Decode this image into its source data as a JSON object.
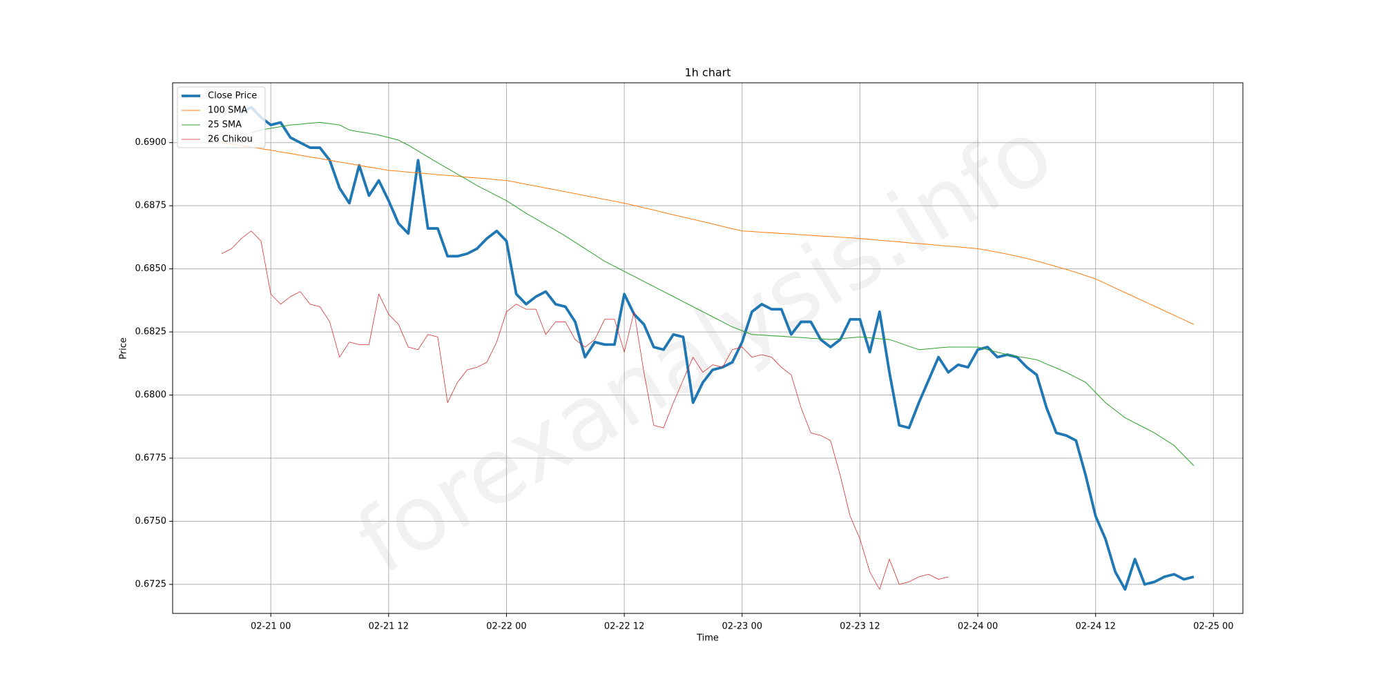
{
  "chart_data": {
    "type": "line",
    "title": "1h chart",
    "xlabel": "Time",
    "ylabel": "Price",
    "watermark": "forexanalysis.info",
    "grid": true,
    "legend": "upper left",
    "xlim": [
      "02-20 14",
      "02-25 03"
    ],
    "xticks": [
      "02-21 00",
      "02-21 12",
      "02-22 00",
      "02-22 12",
      "02-23 00",
      "02-23 12",
      "02-24 00",
      "02-24 12",
      "02-25 00"
    ],
    "ylim": [
      0.67135,
      0.69237
    ],
    "yticks": [
      0.6725,
      {
        "value": 0.675,
        "label": "0.6750"
      },
      0.6775,
      {
        "value": 0.68,
        "label": "0.6800"
      },
      0.6825,
      {
        "value": 0.685,
        "label": "0.6850"
      },
      0.6875,
      {
        "value": 0.69,
        "label": "0.6900"
      }
    ],
    "x": [
      "02-20 19",
      "02-20 20",
      "02-20 21",
      "02-20 22",
      "02-20 23",
      "02-21 00",
      "02-21 01",
      "02-21 02",
      "02-21 03",
      "02-21 04",
      "02-21 05",
      "02-21 06",
      "02-21 07",
      "02-21 08",
      "02-21 09",
      "02-21 10",
      "02-21 11",
      "02-21 12",
      "02-21 13",
      "02-21 14",
      "02-21 15",
      "02-21 16",
      "02-21 17",
      "02-21 18",
      "02-21 19",
      "02-21 20",
      "02-21 21",
      "02-21 22",
      "02-21 23",
      "02-22 00",
      "02-22 01",
      "02-22 02",
      "02-22 03",
      "02-22 04",
      "02-22 05",
      "02-22 06",
      "02-22 07",
      "02-22 08",
      "02-22 09",
      "02-22 10",
      "02-22 11",
      "02-22 12",
      "02-22 13",
      "02-22 14",
      "02-22 15",
      "02-22 16",
      "02-22 17",
      "02-22 18",
      "02-22 19",
      "02-22 20",
      "02-22 21",
      "02-22 22",
      "02-22 23",
      "02-23 00",
      "02-23 01",
      "02-23 02",
      "02-23 03",
      "02-23 04",
      "02-23 05",
      "02-23 06",
      "02-23 07",
      "02-23 08",
      "02-23 09",
      "02-23 10",
      "02-23 11",
      "02-23 12",
      "02-23 13",
      "02-23 14",
      "02-23 15",
      "02-23 16",
      "02-23 17",
      "02-23 18",
      "02-23 19",
      "02-23 20",
      "02-23 21",
      "02-23 22",
      "02-23 23",
      "02-24 00",
      "02-24 01",
      "02-24 02",
      "02-24 03",
      "02-24 04",
      "02-24 05",
      "02-24 06",
      "02-24 07",
      "02-24 08",
      "02-24 09",
      "02-24 10",
      "02-24 11",
      "02-24 12",
      "02-24 13",
      "02-24 14",
      "02-24 15",
      "02-24 16",
      "02-24 17",
      "02-24 18",
      "02-24 19",
      "02-24 20",
      "02-24 21",
      "02-24 22"
    ],
    "series": [
      {
        "name": "Close Price",
        "color": "#1f77b4",
        "width": 3,
        "values": [
          null,
          null,
          0.6912,
          0.6914,
          0.691,
          0.6907,
          0.6908,
          0.6902,
          0.69,
          0.6898,
          0.6898,
          0.6893,
          0.6882,
          0.6876,
          0.6891,
          0.6879,
          0.6885,
          0.6877,
          0.6868,
          0.6864,
          0.6893,
          0.6866,
          0.6866,
          0.6855,
          0.6855,
          0.6856,
          0.6858,
          0.6862,
          0.6865,
          0.6861,
          0.684,
          0.6836,
          0.6839,
          0.6841,
          0.6836,
          0.6835,
          0.6829,
          0.6815,
          0.6821,
          0.682,
          0.682,
          0.684,
          0.6832,
          0.6828,
          0.6819,
          0.6818,
          0.6824,
          0.6823,
          0.6797,
          0.6805,
          0.681,
          0.6811,
          0.6813,
          0.6821,
          0.6833,
          0.6836,
          0.6834,
          0.6834,
          0.6824,
          0.6829,
          0.6829,
          0.6822,
          0.6819,
          0.6822,
          0.683,
          0.683,
          0.6817,
          0.6833,
          0.6809,
          0.6788,
          0.6787,
          0.6797,
          0.6806,
          0.6815,
          0.6809,
          0.6812,
          0.6811,
          0.6818,
          0.6819,
          0.6815,
          0.6816,
          0.6815,
          0.6811,
          0.6808,
          0.6795,
          0.6785,
          0.6784,
          0.6782,
          0.6768,
          0.6752,
          0.6743,
          0.673,
          0.6723,
          0.6735,
          0.6725,
          0.6726,
          0.6728,
          0.6729,
          0.6727,
          0.6728
        ]
      },
      {
        "name": "100 SMA",
        "color": "#ff7f0e",
        "width": 0.8,
        "values": [
          0.69,
          0.68994,
          0.68988,
          0.68982,
          0.68976,
          0.6897,
          0.68963,
          0.68957,
          0.6895,
          0.68943,
          0.68937,
          0.6893,
          0.68923,
          0.68917,
          0.6891,
          0.68903,
          0.68897,
          0.6889,
          0.68887,
          0.68883,
          0.6888,
          0.68877,
          0.68873,
          0.6887,
          0.68867,
          0.68863,
          0.6886,
          0.68857,
          0.68853,
          0.6885,
          0.68843,
          0.68835,
          0.68828,
          0.6882,
          0.68813,
          0.68805,
          0.68798,
          0.6879,
          0.68783,
          0.68775,
          0.68768,
          0.6876,
          0.68751,
          0.68742,
          0.68733,
          0.68723,
          0.68714,
          0.68705,
          0.68696,
          0.68687,
          0.68678,
          0.68668,
          0.68659,
          0.6865,
          0.68648,
          0.68645,
          0.68643,
          0.6864,
          0.68638,
          0.68635,
          0.68633,
          0.6863,
          0.68628,
          0.68625,
          0.68623,
          0.6862,
          0.68617,
          0.68613,
          0.6861,
          0.68607,
          0.68603,
          0.686,
          0.68597,
          0.68593,
          0.6859,
          0.68587,
          0.68583,
          0.6858,
          0.68573,
          0.68566,
          0.68558,
          0.6855,
          0.68541,
          0.68531,
          0.6852,
          0.68509,
          0.68498,
          0.68486,
          0.68473,
          0.6846,
          0.68442,
          0.68424,
          0.68406,
          0.68388,
          0.6837,
          0.68352,
          0.68334,
          0.68316,
          0.68298,
          0.6828
        ]
      },
      {
        "name": "25 SMA",
        "color": "#2ca02c",
        "width": 0.8,
        "values": [
          null,
          null,
          null,
          0.6904,
          0.6905,
          0.69057,
          0.69063,
          0.6907,
          0.69073,
          0.69077,
          0.6908,
          0.69075,
          0.6907,
          0.6905,
          0.69043,
          0.69037,
          0.6903,
          0.6902,
          0.6901,
          0.6899,
          0.68967,
          0.68943,
          0.6892,
          0.68898,
          0.68875,
          0.68853,
          0.6883,
          0.6881,
          0.6879,
          0.6877,
          0.68745,
          0.6872,
          0.68698,
          0.68675,
          0.68653,
          0.6863,
          0.68605,
          0.6858,
          0.68555,
          0.6853,
          0.6851,
          0.6849,
          0.6847,
          0.6845,
          0.6843,
          0.6841,
          0.6839,
          0.6837,
          0.6835,
          0.6833,
          0.6831,
          0.6829,
          0.6827,
          0.68255,
          0.6824,
          0.68238,
          0.68235,
          0.68233,
          0.6823,
          0.68228,
          0.68225,
          0.68223,
          0.6822,
          0.68223,
          0.68227,
          0.6823,
          0.68227,
          0.68223,
          0.6822,
          0.68207,
          0.68193,
          0.6818,
          0.68183,
          0.68187,
          0.6819,
          0.6819,
          0.6819,
          0.6819,
          0.6818,
          0.6817,
          0.6816,
          0.68153,
          0.68147,
          0.6814,
          0.68123,
          0.68107,
          0.6809,
          0.6807,
          0.6805,
          0.6801,
          0.6797,
          0.6794,
          0.6791,
          0.6789,
          0.6787,
          0.6785,
          0.67825,
          0.678,
          0.6776,
          0.6772
        ]
      },
      {
        "name": "26 Chikou",
        "color": "#d62728",
        "width": 0.6,
        "values": [
          0.6856,
          0.6858,
          0.6862,
          0.6865,
          0.6861,
          0.684,
          0.6836,
          0.6839,
          0.6841,
          0.6836,
          0.6835,
          0.6829,
          0.6815,
          0.6821,
          0.682,
          0.682,
          0.684,
          0.6832,
          0.6828,
          0.6819,
          0.6818,
          0.6824,
          0.6823,
          0.6797,
          0.6805,
          0.681,
          0.6811,
          0.6813,
          0.6821,
          0.6833,
          0.6836,
          0.6834,
          0.6834,
          0.6824,
          0.6829,
          0.6829,
          0.6822,
          0.6819,
          0.6822,
          0.683,
          0.683,
          0.6817,
          0.6833,
          0.6809,
          0.6788,
          0.6787,
          0.6797,
          0.6806,
          0.6815,
          0.6809,
          0.6812,
          0.6811,
          0.6818,
          0.6819,
          0.6815,
          0.6816,
          0.6815,
          0.6811,
          0.6808,
          0.6795,
          0.6785,
          0.6784,
          0.6782,
          0.6768,
          0.6752,
          0.6743,
          0.673,
          0.6723,
          0.6735,
          0.6725,
          0.6726,
          0.6728,
          0.6729,
          0.6727,
          0.6728,
          null,
          null,
          null,
          null,
          null,
          null,
          null,
          null,
          null,
          null,
          null,
          null,
          null,
          null,
          null,
          null,
          null,
          null,
          null,
          null,
          null,
          null,
          null,
          null,
          null
        ]
      }
    ]
  }
}
